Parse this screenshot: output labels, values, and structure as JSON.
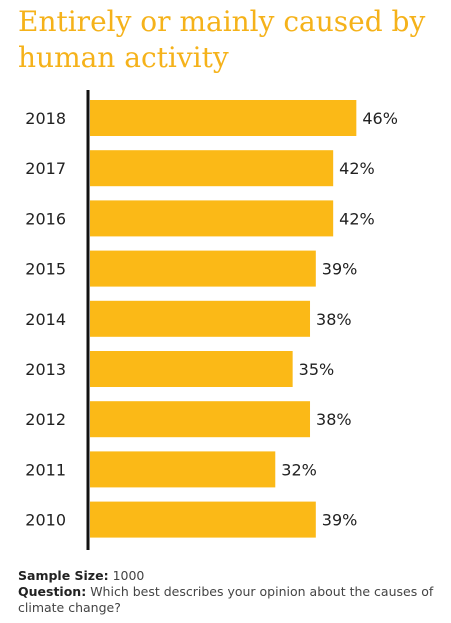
{
  "colors": {
    "title": "#f5b21a",
    "bar": "#fbb917",
    "axis": "#111111",
    "text": "#222222"
  },
  "chart_data": {
    "type": "bar",
    "orientation": "horizontal",
    "title": "Entirely or mainly caused by human activity",
    "categories": [
      "2018",
      "2017",
      "2016",
      "2015",
      "2014",
      "2013",
      "2012",
      "2011",
      "2010"
    ],
    "values": [
      46,
      42,
      42,
      39,
      38,
      35,
      38,
      32,
      39
    ],
    "value_labels": [
      "46%",
      "42%",
      "42%",
      "39%",
      "38%",
      "35%",
      "38%",
      "32%",
      "39%"
    ],
    "unit": "%",
    "xlabel": "",
    "ylabel": "",
    "grid": false,
    "legend": "none"
  },
  "footnote": {
    "sample_label": "Sample Size:",
    "sample_value": "1000",
    "question_label": "Question:",
    "question_text": "Which best describes your opinion about the causes of climate change?"
  }
}
